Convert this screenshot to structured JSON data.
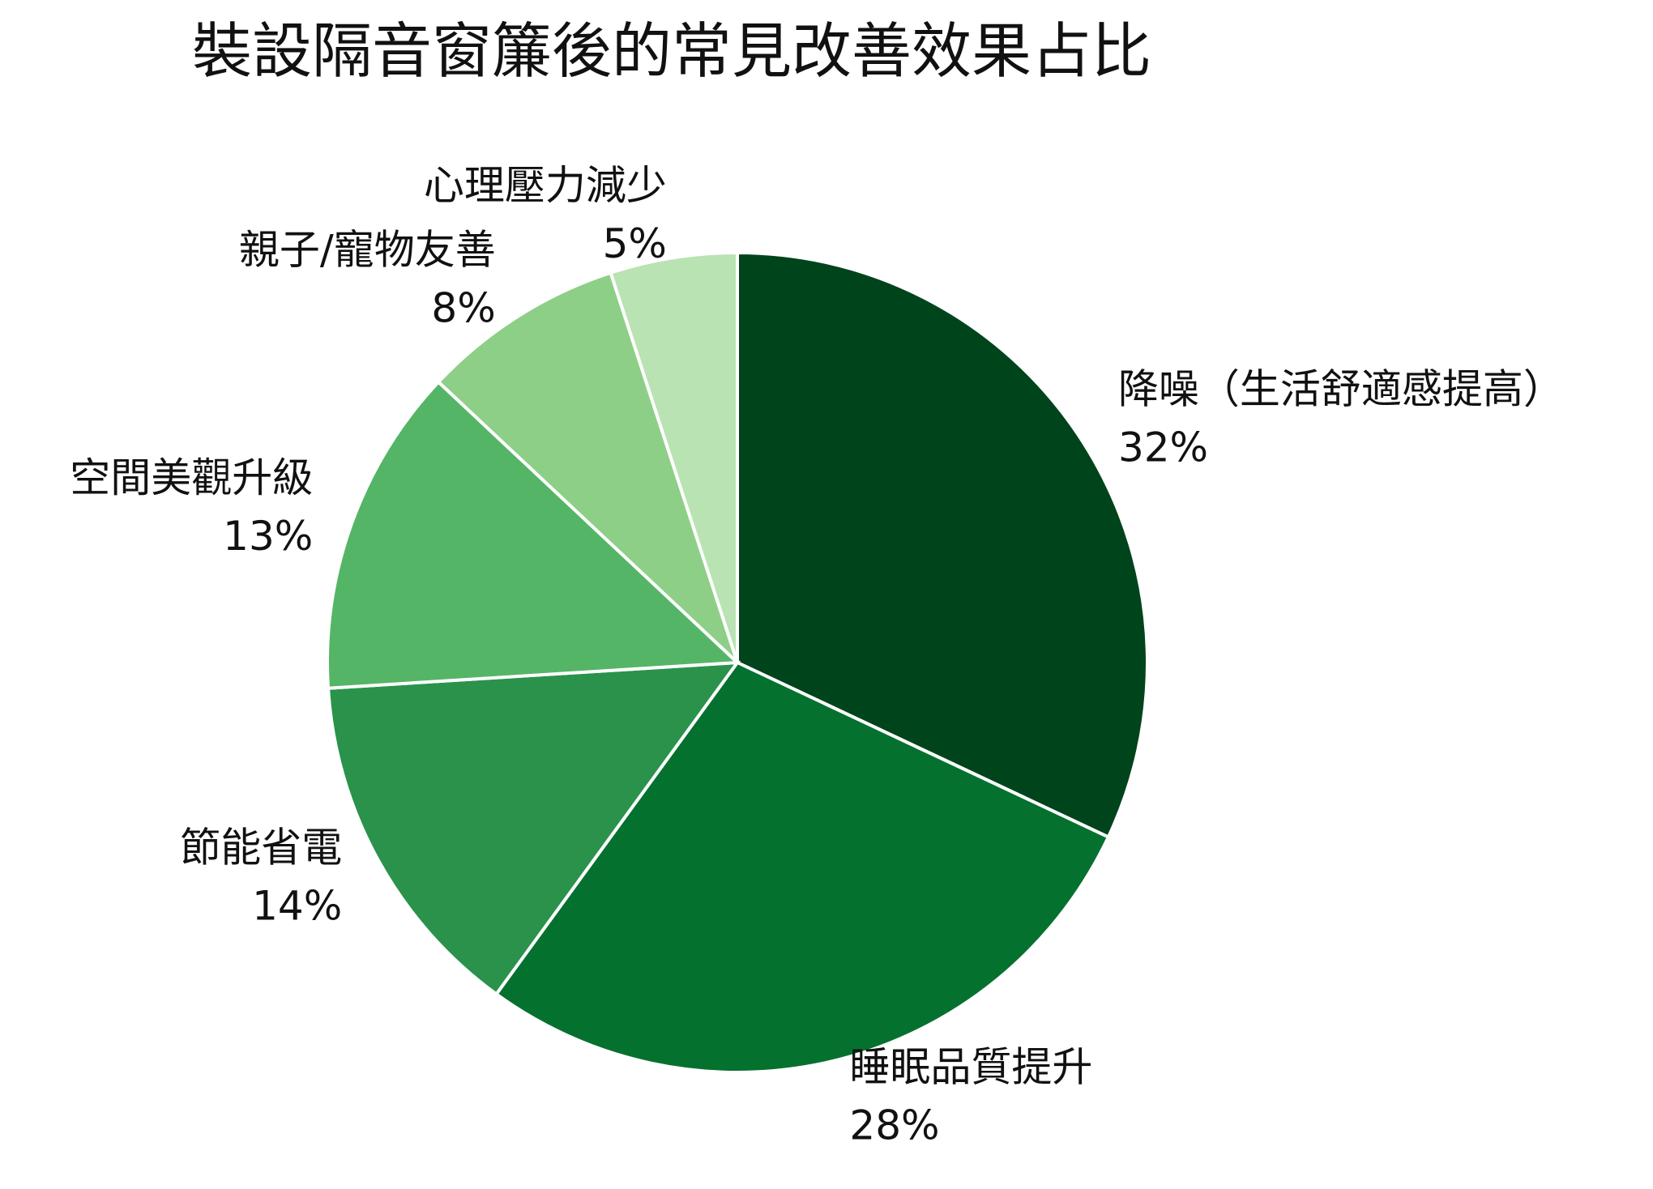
{
  "chart_data": {
    "type": "pie",
    "title": "裝設隔音窗簾後的常見改善效果占比",
    "categories": [
      "降噪（生活舒適感提高）",
      "睡眠品質提升",
      "節能省電",
      "空間美觀升級",
      "親子/寵物友善",
      "心理壓力減少"
    ],
    "values": [
      32,
      28,
      14,
      13,
      8,
      5
    ],
    "value_labels": [
      "32%",
      "28%",
      "14%",
      "13%",
      "8%",
      "5%"
    ],
    "colors": [
      "#00441b",
      "#05712f",
      "#2a924a",
      "#55b567",
      "#8ecf87",
      "#b9e3b2"
    ]
  }
}
